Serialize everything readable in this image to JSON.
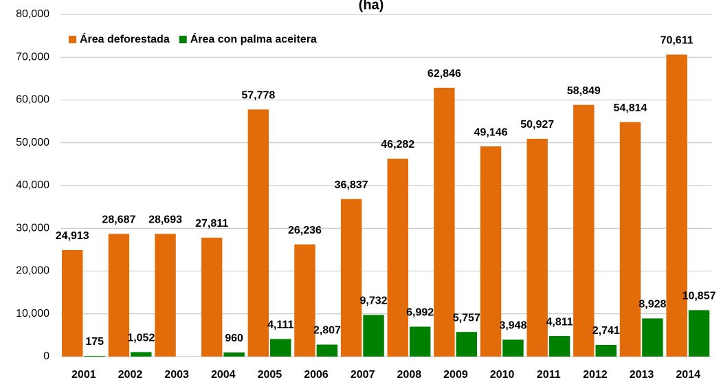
{
  "chart_data": {
    "type": "bar",
    "title": "(ha)",
    "categories": [
      "2001",
      "2002",
      "2003",
      "2004",
      "2005",
      "2006",
      "2007",
      "2008",
      "2009",
      "2010",
      "2011",
      "2012",
      "2013",
      "2014"
    ],
    "series": [
      {
        "name": "Área deforestada",
        "color": "#e36c0a",
        "values": [
          24913,
          28687,
          28693,
          27811,
          57778,
          26236,
          36837,
          46282,
          62846,
          49146,
          50927,
          58849,
          54814,
          70611
        ],
        "value_labels": [
          "24,913",
          "28,687",
          "28,693",
          "27,811",
          "57,778",
          "26,236",
          "36,837",
          "46,282",
          "62,846",
          "49,146",
          "50,927",
          "58,849",
          "54,814",
          "70,611"
        ]
      },
      {
        "name": "Área con palma aceitera",
        "color": "#008000",
        "values": [
          175,
          1052,
          null,
          960,
          4111,
          2807,
          9732,
          6992,
          5757,
          3948,
          4811,
          2741,
          8928,
          10857
        ],
        "value_labels": [
          "175",
          "1,052",
          null,
          "960",
          "4,111",
          "2,807",
          "9,732",
          "6,992",
          "5,757",
          "3,948",
          "4,811",
          "2,741",
          "8,928",
          "10,857"
        ]
      }
    ],
    "ylim": [
      0,
      80000
    ],
    "yticks": [
      0,
      {
        "value": 10000,
        "label": "10,000"
      },
      {
        "value": 20000,
        "label": "20,000"
      },
      {
        "value": 30000,
        "label": "30,000"
      },
      {
        "value": 40000,
        "label": "40,000"
      },
      {
        "value": 50000,
        "label": "50,000"
      },
      {
        "value": 60000,
        "label": "60,000"
      },
      {
        "value": 70000,
        "label": "70,000"
      },
      {
        "value": 80000,
        "label": "80,000"
      }
    ],
    "grid": true,
    "legend": "top-left"
  }
}
